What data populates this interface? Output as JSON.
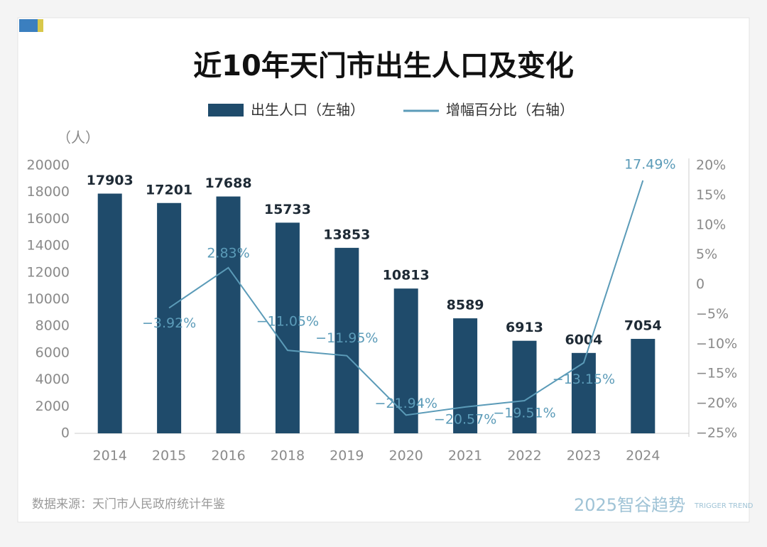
{
  "chart_data": {
    "type": "bar",
    "title": "近10年天门市出生人口及变化",
    "y_label": "（人）",
    "source": "数据来源：天门市人民政府统计年鉴",
    "brand": "2025智谷趋势",
    "brand_sub": "TRIGGER TREND",
    "categories": [
      "2014",
      "2015",
      "2016",
      "2018",
      "2019",
      "2020",
      "2021",
      "2022",
      "2023",
      "2024"
    ],
    "series": [
      {
        "name": "出生人口（左轴）",
        "type": "bar",
        "color": "#1f4b6b",
        "values": [
          17903,
          17201,
          17688,
          15733,
          13853,
          10813,
          8589,
          6913,
          6004,
          7054
        ]
      },
      {
        "name": "增幅百分比（右轴）",
        "type": "line",
        "color": "#5b9bb8",
        "axis": "y2",
        "values": [
          null,
          -3.92,
          2.83,
          -11.05,
          -11.95,
          -21.94,
          -20.57,
          -19.51,
          -13.15,
          17.49
        ],
        "value_labels": [
          null,
          "−3.92%",
          "2.83%",
          "−11.05%",
          "−11.95%",
          "−21.94%",
          "−20.57%",
          "−19.51%",
          "−13.15%",
          "17.49%"
        ]
      }
    ],
    "ylim": [
      0,
      20000
    ],
    "yticks": [
      0,
      2000,
      4000,
      6000,
      8000,
      10000,
      12000,
      14000,
      16000,
      18000,
      20000
    ],
    "y2lim": [
      -25,
      20
    ],
    "y2ticks": [
      {
        "value": -25,
        "label": "−25%"
      },
      {
        "value": -20,
        "label": "−20%"
      },
      {
        "value": -15,
        "label": "−15%"
      },
      {
        "value": -10,
        "label": "−10%"
      },
      {
        "value": -5,
        "label": "−5%"
      },
      0,
      {
        "value": 5,
        "label": "5%"
      },
      {
        "value": 10,
        "label": "10%"
      },
      {
        "value": 15,
        "label": "15%"
      },
      {
        "value": 20,
        "label": "20%"
      }
    ]
  }
}
